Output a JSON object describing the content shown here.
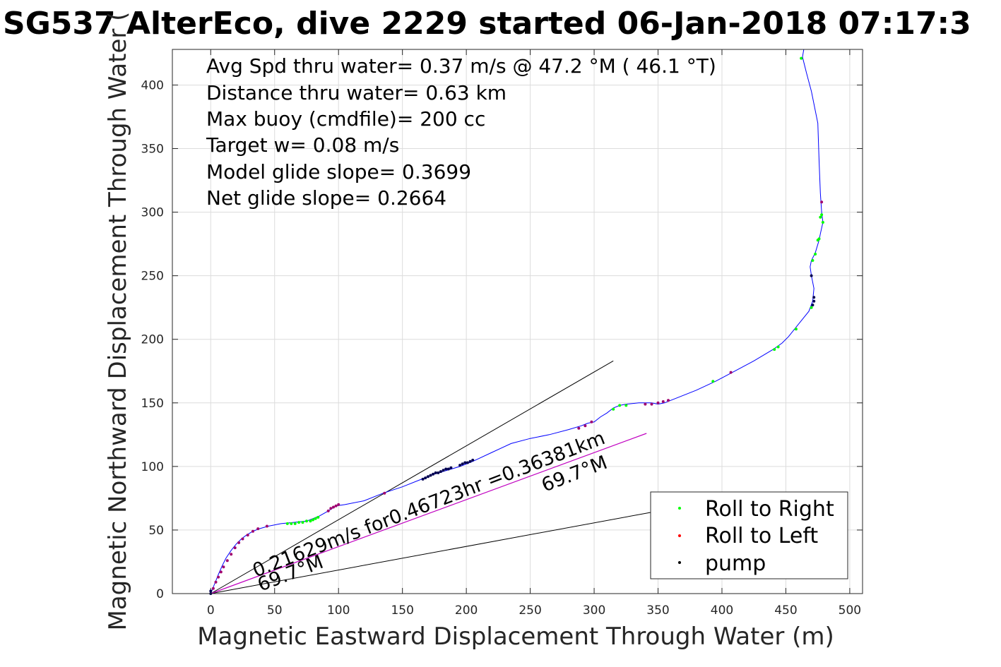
{
  "title": "SG537 AlterEco, dive 2229 started 06-Jan-2018 07:17:3",
  "info_lines": [
    "Avg Spd thru water=  0.37 m/s @  47.2 °M ( 46.1 °T)",
    "Distance thru water=  0.63 km",
    "Max buoy (cmdfile)= 200 cc",
    "Target w= 0.08 m/s",
    "Model glide slope= 0.3699",
    "Net glide slope= 0.2664"
  ],
  "annotations": {
    "current_text": "0.21629m/s for0.46723hr =0.36381km",
    "current_heading": "69.7°M",
    "current_heading_near_origin": "69.7°M"
  },
  "legend": {
    "placement": "bottom-right",
    "items": [
      {
        "label": "Roll to Right",
        "color": "#00ff00"
      },
      {
        "label": "Roll to Left",
        "color": "#ff0000"
      },
      {
        "label": "pump",
        "color": "#000000"
      }
    ]
  },
  "colors": {
    "track": "#0000ff",
    "current_vector": "#c000c0",
    "reference_lines": "#000000",
    "roll_left_marker": "#a0006e",
    "pump_marker": "#000050"
  },
  "chart_data": {
    "type": "line",
    "title": "SG537 AlterEco, dive 2229 started 06-Jan-2018 07:17:3",
    "xlabel": "Magnetic Eastward Displacement Through Water (m)",
    "ylabel": "Magnetic Northward Displacement Through Water (",
    "xlim": [
      -30,
      510
    ],
    "ylim": [
      0,
      428
    ],
    "xticks": [
      0,
      50,
      100,
      150,
      200,
      250,
      300,
      350,
      400,
      450,
      500
    ],
    "yticks": [
      0,
      50,
      100,
      150,
      200,
      250,
      300,
      350,
      400
    ],
    "grid": true,
    "series": [
      {
        "role": "track",
        "x": [
          0,
          2,
          4,
          6,
          9,
          12,
          16,
          20,
          24,
          28,
          33,
          38,
          45,
          55,
          65,
          75,
          85,
          92,
          98,
          105,
          120,
          135,
          150,
          165,
          175,
          185,
          195,
          205,
          220,
          235,
          250,
          265,
          280,
          290,
          295,
          300,
          305,
          310,
          315,
          320,
          325,
          335,
          345,
          350,
          355,
          360,
          380,
          395,
          410,
          425,
          440,
          447,
          452,
          460,
          468,
          471,
          472,
          470,
          469,
          470,
          473,
          476,
          477,
          479,
          478,
          477,
          476,
          475,
          470,
          466,
          463,
          464
        ],
        "y": [
          0,
          5,
          10,
          15,
          22,
          28,
          34,
          39,
          43,
          46,
          49,
          51,
          53,
          55,
          56,
          57,
          61,
          65,
          69,
          70,
          73,
          79,
          84,
          90,
          94,
          97,
          100,
          104,
          111,
          118,
          122,
          125,
          129,
          132,
          134,
          135,
          139,
          142,
          146,
          148,
          149,
          150,
          150,
          149,
          150,
          152,
          160,
          167,
          175,
          183,
          192,
          197,
          202,
          212,
          222,
          230,
          240,
          250,
          257,
          262,
          268,
          278,
          283,
          292,
          300,
          315,
          340,
          370,
          395,
          410,
          422,
          428
        ]
      },
      {
        "role": "roll-right",
        "x": [
          60,
          63,
          66,
          69,
          72,
          75,
          78,
          80,
          82,
          84,
          315,
          320,
          325,
          393,
          441,
          444,
          458,
          470,
          471,
          473,
          475,
          476,
          477,
          478,
          479,
          462
        ],
        "y": [
          55,
          55,
          55,
          56,
          56,
          57,
          57,
          58,
          59,
          60,
          145,
          148,
          148,
          167,
          192,
          194,
          208,
          225,
          262,
          267,
          278,
          279,
          296,
          298,
          292,
          421
        ]
      },
      {
        "role": "roll-left",
        "x": [
          2,
          4,
          6,
          8,
          10,
          13,
          16,
          19,
          22,
          25,
          29,
          33,
          37,
          44,
          92,
          94,
          96,
          98,
          100,
          136,
          288,
          293,
          298,
          340,
          345,
          350,
          354,
          358,
          407,
          478
        ],
        "y": [
          4,
          9,
          13,
          17,
          21,
          26,
          31,
          36,
          40,
          43,
          46,
          49,
          51,
          53,
          65,
          67,
          68,
          69,
          70,
          79,
          130,
          132,
          135,
          149,
          149,
          150,
          151,
          152,
          174,
          308
        ]
      },
      {
        "role": "pump",
        "x": [
          0,
          0,
          166,
          168,
          170,
          172,
          174,
          176,
          178,
          180,
          182,
          184,
          186,
          188,
          195,
          197,
          199,
          201,
          203,
          205,
          470,
          471,
          472,
          472
        ],
        "y": [
          0,
          2,
          90,
          91,
          92,
          93,
          94,
          95,
          95,
          96,
          97,
          98,
          98,
          99,
          101,
          102,
          103,
          103,
          104,
          105,
          250,
          227,
          230,
          233
        ]
      },
      {
        "role": "current-vector",
        "x": [
          0,
          341
        ],
        "y": [
          0,
          126
        ]
      },
      {
        "role": "heading-line-steep",
        "x": [
          0,
          315
        ],
        "y": [
          0,
          183
        ]
      },
      {
        "role": "heading-line-shallow",
        "x": [
          0,
          345
        ],
        "y": [
          0,
          64
        ]
      }
    ]
  }
}
